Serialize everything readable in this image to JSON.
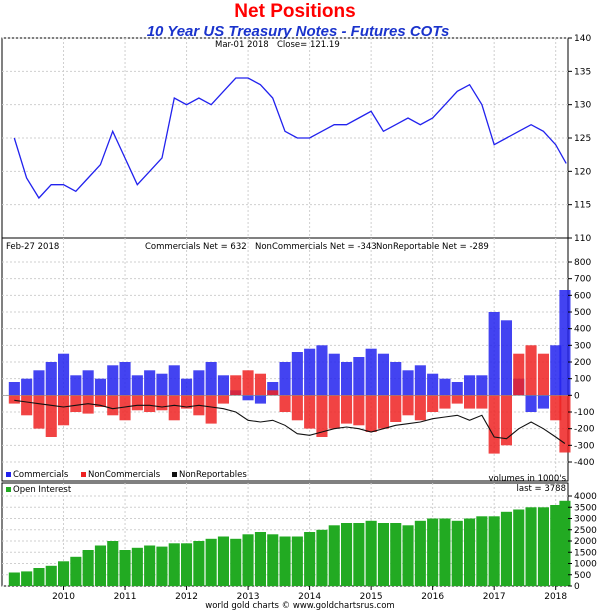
{
  "header": {
    "title": "Net Positions",
    "subtitle": "10 Year US Treasury Notes - Futures COTs"
  },
  "footer": {
    "credit": "world gold charts © www.goldchartsrus.com"
  },
  "chart_data": [
    {
      "type": "line",
      "panel": "price",
      "annotation": {
        "date": "Mar-01  2018",
        "close_label": "Close= 121.19"
      },
      "ylim": [
        110,
        140
      ],
      "yticks": [
        110,
        115,
        120,
        125,
        130,
        135,
        140
      ],
      "x": [
        2009.2,
        2009.4,
        2009.6,
        2009.8,
        2010.0,
        2010.2,
        2010.4,
        2010.6,
        2010.8,
        2011.0,
        2011.2,
        2011.4,
        2011.6,
        2011.8,
        2012.0,
        2012.2,
        2012.4,
        2012.6,
        2012.8,
        2013.0,
        2013.2,
        2013.4,
        2013.6,
        2013.8,
        2014.0,
        2014.2,
        2014.4,
        2014.6,
        2014.8,
        2015.0,
        2015.2,
        2015.4,
        2015.6,
        2015.8,
        2016.0,
        2016.2,
        2016.4,
        2016.6,
        2016.8,
        2017.0,
        2017.2,
        2017.4,
        2017.6,
        2017.8,
        2018.0,
        2018.17
      ],
      "y": [
        125,
        119,
        116,
        118,
        118,
        117,
        119,
        121,
        126,
        122,
        118,
        120,
        122,
        131,
        130,
        131,
        130,
        132,
        134,
        134,
        133,
        131,
        126,
        125,
        125,
        126,
        127,
        127,
        128,
        129,
        126,
        127,
        128,
        127,
        128,
        130,
        132,
        133,
        130,
        124,
        125,
        126,
        127,
        126,
        124,
        121.19
      ],
      "series": [
        {
          "name": "",
          "color": "#2222ee"
        }
      ]
    },
    {
      "type": "bar",
      "panel": "net_positions",
      "annotation": {
        "date": "Feb-27  2018",
        "commercials_label": "Commercials Net = 632",
        "noncommercials_label": "NonCommercials Net = -343",
        "nonreportable_label": "NonReportable Net = -289",
        "units_label": "volumes in 1000's"
      },
      "ylim": [
        -400,
        800
      ],
      "yticks": [
        -400,
        -300,
        -200,
        -100,
        0,
        100,
        200,
        300,
        400,
        500,
        600,
        700,
        800
      ],
      "x": [
        2009.2,
        2009.4,
        2009.6,
        2009.8,
        2010.0,
        2010.2,
        2010.4,
        2010.6,
        2010.8,
        2011.0,
        2011.2,
        2011.4,
        2011.6,
        2011.8,
        2012.0,
        2012.2,
        2012.4,
        2012.6,
        2012.8,
        2013.0,
        2013.2,
        2013.4,
        2013.6,
        2013.8,
        2014.0,
        2014.2,
        2014.4,
        2014.6,
        2014.8,
        2015.0,
        2015.2,
        2015.4,
        2015.6,
        2015.8,
        2016.0,
        2016.2,
        2016.4,
        2016.6,
        2016.8,
        2017.0,
        2017.2,
        2017.4,
        2017.6,
        2017.8,
        2018.0,
        2018.15
      ],
      "series": [
        {
          "name": "Commercials",
          "color": "#2222ee",
          "values": [
            80,
            100,
            150,
            200,
            250,
            120,
            150,
            100,
            180,
            200,
            120,
            150,
            130,
            180,
            100,
            150,
            200,
            120,
            30,
            -30,
            -50,
            80,
            200,
            260,
            280,
            300,
            250,
            200,
            230,
            280,
            250,
            200,
            150,
            180,
            130,
            100,
            80,
            120,
            120,
            500,
            450,
            100,
            -100,
            -80,
            300,
            632
          ]
        },
        {
          "name": "NonCommercials",
          "color": "#ee2222",
          "values": [
            -50,
            -120,
            -200,
            -250,
            -180,
            -100,
            -110,
            -70,
            -120,
            -150,
            -90,
            -100,
            -90,
            -150,
            -80,
            -120,
            -170,
            -50,
            120,
            150,
            130,
            30,
            -100,
            -150,
            -200,
            -250,
            -200,
            -170,
            -180,
            -220,
            -200,
            -160,
            -120,
            -150,
            -100,
            -80,
            -50,
            -80,
            -80,
            -350,
            -300,
            250,
            300,
            250,
            -150,
            -343
          ]
        },
        {
          "name": "NonReportables",
          "color": "#111111",
          "values": [
            -30,
            -40,
            -50,
            -60,
            -70,
            -60,
            -50,
            -60,
            -80,
            -70,
            -60,
            -60,
            -70,
            -60,
            -70,
            -60,
            -70,
            -80,
            -100,
            -150,
            -160,
            -150,
            -180,
            -230,
            -240,
            -220,
            -200,
            -190,
            -200,
            -220,
            -200,
            -180,
            -170,
            -160,
            -140,
            -130,
            -120,
            -150,
            -120,
            -250,
            -260,
            -200,
            -160,
            -200,
            -250,
            -289
          ]
        }
      ]
    },
    {
      "type": "bar",
      "panel": "open_interest",
      "annotation": {
        "last_label": "last = 3788"
      },
      "ylim": [
        0,
        4000
      ],
      "yticks": [
        0,
        500,
        1000,
        1500,
        2000,
        2500,
        3000,
        3500,
        4000
      ],
      "x": [
        2009.2,
        2009.4,
        2009.6,
        2009.8,
        2010.0,
        2010.2,
        2010.4,
        2010.6,
        2010.8,
        2011.0,
        2011.2,
        2011.4,
        2011.6,
        2011.8,
        2012.0,
        2012.2,
        2012.4,
        2012.6,
        2012.8,
        2013.0,
        2013.2,
        2013.4,
        2013.6,
        2013.8,
        2014.0,
        2014.2,
        2014.4,
        2014.6,
        2014.8,
        2015.0,
        2015.2,
        2015.4,
        2015.6,
        2015.8,
        2016.0,
        2016.2,
        2016.4,
        2016.6,
        2016.8,
        2017.0,
        2017.2,
        2017.4,
        2017.6,
        2017.8,
        2018.0,
        2018.15
      ],
      "series": [
        {
          "name": "Open Interest",
          "color": "#22aa22",
          "values": [
            600,
            650,
            800,
            900,
            1100,
            1300,
            1600,
            1800,
            2000,
            1600,
            1700,
            1800,
            1750,
            1900,
            1900,
            2000,
            2100,
            2200,
            2100,
            2300,
            2400,
            2300,
            2200,
            2200,
            2400,
            2500,
            2700,
            2800,
            2800,
            2900,
            2800,
            2800,
            2700,
            2900,
            3000,
            3000,
            2900,
            3000,
            3100,
            3100,
            3300,
            3400,
            3500,
            3500,
            3600,
            3788
          ]
        }
      ]
    }
  ],
  "x_axis": {
    "ticks": [
      "2010",
      "2011",
      "2012",
      "2013",
      "2014",
      "2015",
      "2016",
      "2017",
      "2018"
    ],
    "xlim": [
      2009.0,
      2018.2
    ]
  }
}
